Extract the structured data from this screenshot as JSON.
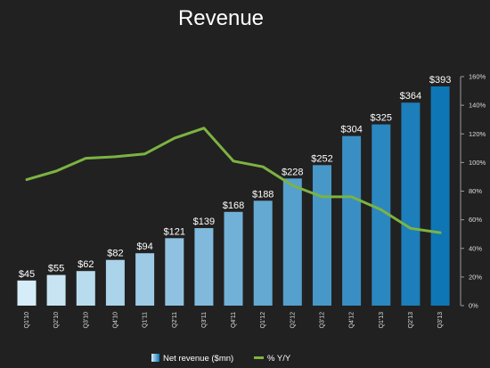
{
  "chart_data": {
    "type": "bar",
    "title": "Revenue",
    "categories": [
      "Q1'10",
      "Q2'10",
      "Q3'10",
      "Q4'10",
      "Q1'11",
      "Q2'11",
      "Q3'11",
      "Q4'11",
      "Q1'12",
      "Q2'12",
      "Q3'12",
      "Q4'12",
      "Q1'13",
      "Q2'13",
      "Q3'13"
    ],
    "series": [
      {
        "name": "Net revenue ($mn)",
        "type": "bar",
        "values": [
          45,
          55,
          62,
          82,
          94,
          121,
          139,
          168,
          188,
          228,
          252,
          304,
          325,
          364,
          393
        ],
        "labels": [
          "$45",
          "$55",
          "$62",
          "$82",
          "$94",
          "$121",
          "$139",
          "$168",
          "$188",
          "$228",
          "$252",
          "$304",
          "$325",
          "$364",
          "$393"
        ],
        "color_start": "#d6ecf8",
        "color_end": "#0e76b5"
      },
      {
        "name": "% Y/Y",
        "type": "line",
        "axis": "right",
        "values": [
          88,
          94,
          103,
          104,
          106,
          117,
          124,
          101,
          97,
          84,
          76,
          76,
          67,
          54,
          51
        ],
        "color": "#7cb342"
      }
    ],
    "y_right": {
      "ylim": [
        0,
        160
      ],
      "ticks": [
        "0%",
        "20%",
        "40%",
        "60%",
        "80%",
        "100%",
        "120%",
        "140%",
        "160%"
      ]
    },
    "bar_ylim": [
      0,
      420
    ],
    "legend_position": "bottom-center",
    "grid": false
  }
}
